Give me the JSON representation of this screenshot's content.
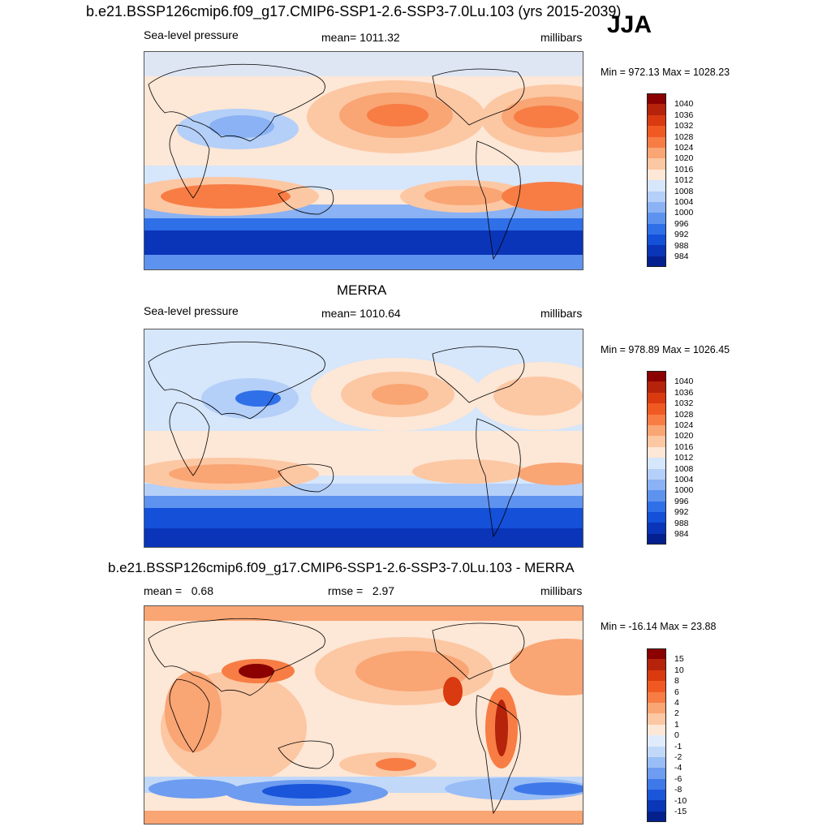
{
  "header": {
    "title": "b.e21.BSSP126cmip6.f09_g17.CMIP6-SSP1-2.6-SSP3-7.0Lu.103 (yrs 2015-2039)",
    "season": "JJA"
  },
  "panels": [
    {
      "id": "model",
      "title": "",
      "left_label": "Sea-level pressure",
      "center_label": "mean= 1011.32",
      "units": "millibars",
      "minmax": "Min = 972.13 Max = 1028.23",
      "colorbar": {
        "colors": [
          "#8b0000",
          "#b5230a",
          "#d93a10",
          "#f05a22",
          "#f77d45",
          "#f9a574",
          "#fcc7a3",
          "#fde7d6",
          "#d6e6fb",
          "#b4cff8",
          "#8ab2f4",
          "#5e92ef",
          "#2f6fe8",
          "#1450d8",
          "#0a35b8",
          "#04208f"
        ],
        "labels": [
          "1040",
          "1036",
          "1032",
          "1028",
          "1024",
          "1020",
          "1016",
          "1012",
          "1008",
          "1004",
          "1000",
          "996",
          "992",
          "988",
          "984"
        ]
      }
    },
    {
      "id": "obs",
      "title": "MERRA",
      "left_label": "Sea-level pressure",
      "center_label": "mean= 1010.64",
      "units": "millibars",
      "minmax": "Min = 978.89 Max = 1026.45",
      "colorbar": {
        "colors": [
          "#8b0000",
          "#b5230a",
          "#d93a10",
          "#f05a22",
          "#f77d45",
          "#f9a574",
          "#fcc7a3",
          "#fde7d6",
          "#d6e6fb",
          "#b4cff8",
          "#8ab2f4",
          "#5e92ef",
          "#2f6fe8",
          "#1450d8",
          "#0a35b8",
          "#04208f"
        ],
        "labels": [
          "1040",
          "1036",
          "1032",
          "1028",
          "1024",
          "1020",
          "1016",
          "1012",
          "1008",
          "1004",
          "1000",
          "996",
          "992",
          "988",
          "984"
        ]
      }
    },
    {
      "id": "diff",
      "title": "b.e21.BSSP126cmip6.f09_g17.CMIP6-SSP1-2.6-SSP3-7.0Lu.103 - MERRA",
      "left_label": "mean =   0.68",
      "center_label": "rmse =   2.97",
      "units": "millibars",
      "minmax": "Min = -16.14 Max =  23.88",
      "colorbar": {
        "colors": [
          "#8b0000",
          "#b5230a",
          "#d93a10",
          "#f05a22",
          "#f77d45",
          "#f9a574",
          "#fcc7a3",
          "#fde7d6",
          "#e0ecfc",
          "#c1d8f9",
          "#99bdf5",
          "#6d9cf0",
          "#3f79e9",
          "#1a55da",
          "#0a36b8",
          "#03208c"
        ],
        "labels": [
          "15",
          "10",
          "8",
          "6",
          "4",
          "2",
          "1",
          "0",
          "-1",
          "-2",
          "-4",
          "-6",
          "-8",
          "-10",
          "-15"
        ]
      }
    }
  ]
}
